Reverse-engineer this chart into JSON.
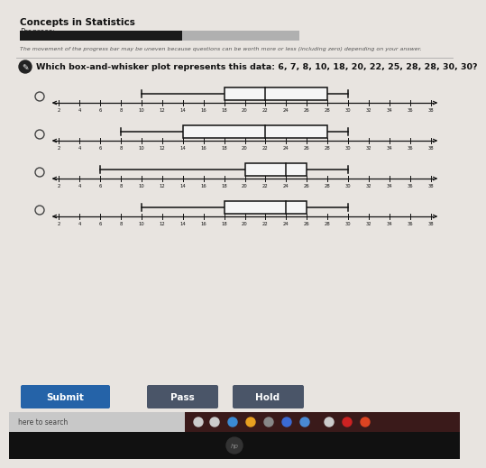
{
  "title": "Which box-and-whisker plot represents this data: 6, 7, 8, 10, 18, 20, 22, 25, 28, 28, 30, 30?",
  "header": "Concepts in Statistics",
  "subheader": "Progress:",
  "note": "The movement of the progress bar may be uneven because questions can be worth more or less (including zero) depending on your answer.",
  "progress_fill": 0.58,
  "plots": [
    {
      "min": 10,
      "q1": 18,
      "median": 22,
      "q3": 28,
      "max": 30
    },
    {
      "min": 8,
      "q1": 14,
      "median": 22,
      "q3": 28,
      "max": 30
    },
    {
      "min": 6,
      "q1": 20,
      "median": 24,
      "q3": 26,
      "max": 30
    },
    {
      "min": 10,
      "q1": 18,
      "median": 24,
      "q3": 26,
      "max": 30
    }
  ],
  "axis_ticks": [
    2,
    4,
    6,
    8,
    10,
    12,
    14,
    16,
    18,
    20,
    22,
    24,
    26,
    28,
    30,
    32,
    34,
    36,
    38
  ],
  "axis_data_min": 2,
  "axis_data_max": 38,
  "bg_color": "#e8e4e0",
  "content_bg": "#dedad6",
  "box_color": "#f5f5f5",
  "box_edge_color": "#111111",
  "whisker_color": "#111111",
  "axis_color": "#111111",
  "submit_color": "#2563a8",
  "pass_color": "#4a5568",
  "hold_color": "#4a5568",
  "progress_bg": "#b0b0b0",
  "progress_fill_color": "#1a1a1a",
  "taskbar_color": "#3a1c1c",
  "taskbar_left_color": "#cccccc",
  "bottom_black": "#111111"
}
